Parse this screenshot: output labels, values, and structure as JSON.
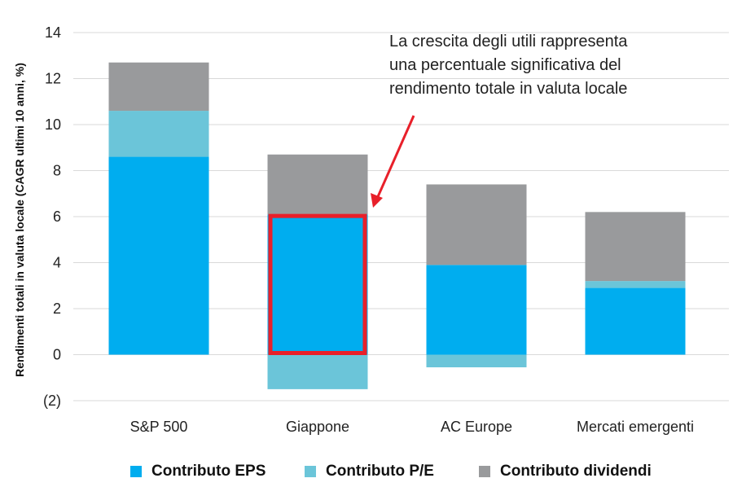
{
  "chart_data": {
    "type": "bar",
    "stacked": true,
    "ylabel": "Rendimenti totali in valuta locale (CAGR ultimi 10 anni, %)",
    "ylim": [
      -2,
      14
    ],
    "yticks": [
      -2,
      0,
      2,
      4,
      6,
      8,
      10,
      12,
      14
    ],
    "ytick_labels": [
      "(2)",
      "0",
      "2",
      "4",
      "6",
      "8",
      "10",
      "12",
      "14"
    ],
    "categories": [
      "S&P 500",
      "Giappone",
      "AC Europe",
      "Mercati emergenti"
    ],
    "series": [
      {
        "name": "Contributo EPS",
        "color": "#00adef",
        "values": [
          8.6,
          6.1,
          3.9,
          2.9
        ]
      },
      {
        "name": "Contributo P/E",
        "color": "#6bc5d9",
        "values": [
          2.0,
          -1.5,
          -0.55,
          0.3
        ]
      },
      {
        "name": "Contributo dividendi",
        "color": "#999a9c",
        "values": [
          2.1,
          2.6,
          3.5,
          3.0
        ]
      }
    ],
    "grid": true,
    "legend_position": "bottom",
    "annotation": {
      "lines": [
        "La crescita degli utili rappresenta",
        "una percentuale significativa del",
        "rendimento totale in valuta locale"
      ],
      "highlight_category": "Giappone",
      "highlight_series": "Contributo EPS",
      "highlight_color": "#e8202a"
    }
  }
}
